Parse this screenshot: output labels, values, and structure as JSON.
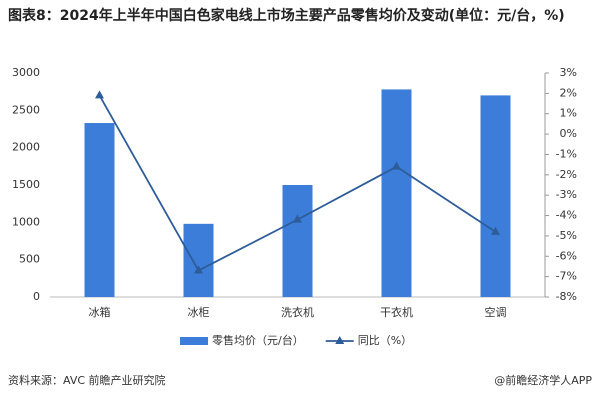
{
  "chart_data": {
    "type": "bar",
    "title": "图表8：2024年上半年中国白色家电线上市场主要产品零售均价及变动(单位：元/台，%)",
    "categories": [
      "冰箱",
      "冰柜",
      "洗衣机",
      "干衣机",
      "空调"
    ],
    "series": [
      {
        "name": "零售均价（元/台）",
        "type": "bar",
        "color": "#3b7dd8",
        "values": [
          2330,
          980,
          1500,
          2780,
          2700
        ]
      },
      {
        "name": "同比（%）",
        "type": "line",
        "axis": "y2",
        "color": "#2e5c99",
        "values": [
          1.9,
          -6.7,
          -4.2,
          -1.6,
          -4.8
        ]
      }
    ],
    "ylim": [
      0,
      3000
    ],
    "yticks": [
      0,
      500,
      1000,
      1500,
      2000,
      2500,
      3000
    ],
    "y2lim": [
      -8,
      3
    ],
    "y2ticks": [
      {
        "value": -8,
        "label": "-8%"
      },
      {
        "value": -7,
        "label": "-7%"
      },
      {
        "value": -6,
        "label": "-6%"
      },
      {
        "value": -5,
        "label": "-5%"
      },
      {
        "value": -4,
        "label": "-4%"
      },
      {
        "value": -3,
        "label": "-3%"
      },
      {
        "value": -2,
        "label": "-2%"
      },
      {
        "value": -1,
        "label": "-1%"
      },
      {
        "value": 0,
        "label": "0%"
      },
      {
        "value": 1,
        "label": "1%"
      },
      {
        "value": 2,
        "label": "2%"
      },
      {
        "value": 3,
        "label": "3%"
      }
    ],
    "source": "资料来源：AVC 前瞻产业研究院",
    "credit": "@前瞻经济学人APP"
  }
}
